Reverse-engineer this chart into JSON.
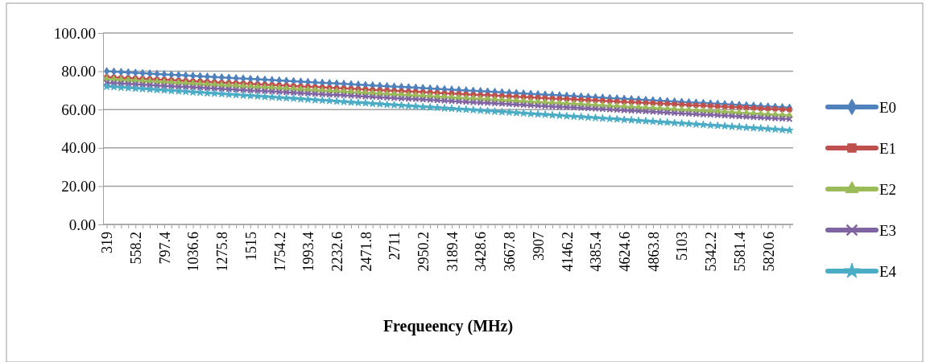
{
  "chart_data": {
    "type": "line",
    "xlabel": "Frequeency (MHz)",
    "categories": [
      "319",
      null,
      null,
      null,
      "558.2",
      null,
      null,
      null,
      "797.4",
      null,
      null,
      null,
      "1036.6",
      null,
      null,
      null,
      "1275.8",
      null,
      null,
      null,
      "1515",
      null,
      null,
      null,
      "1754.2",
      null,
      null,
      null,
      "1993.4",
      null,
      null,
      null,
      "2232.6",
      null,
      null,
      null,
      "2471.8",
      null,
      null,
      null,
      "2711",
      null,
      null,
      null,
      "2950.2",
      null,
      null,
      null,
      "3189.4",
      null,
      null,
      null,
      "3428.6",
      null,
      null,
      null,
      "3667.8",
      null,
      null,
      null,
      "3907",
      null,
      null,
      null,
      "4146.2",
      null,
      null,
      null,
      "4385.4",
      null,
      null,
      null,
      "4624.6",
      null,
      null,
      null,
      "4863.8",
      null,
      null,
      null,
      "5103",
      null,
      null,
      null,
      "5342.2",
      null,
      null,
      null,
      "5581.4",
      null,
      null,
      null,
      "5820.6",
      null,
      null,
      null
    ],
    "ylim": [
      0,
      100
    ],
    "yticks": [
      {
        "value": 0,
        "label": "0.00"
      },
      {
        "value": 20,
        "label": "20.00"
      },
      {
        "value": 40,
        "label": "40.00"
      },
      {
        "value": 60,
        "label": "60.00"
      },
      {
        "value": 80,
        "label": "80.00"
      },
      {
        "value": 100,
        "label": "100.00"
      }
    ],
    "grid": "y",
    "legend": "right",
    "line_style": "solid",
    "series": [
      {
        "name": "E0",
        "color": "#4f81bd",
        "marker": "diamond",
        "values": [
          80.0,
          79.8,
          79.6,
          79.4,
          79.2,
          79.0,
          78.8,
          78.6,
          78.4,
          78.2,
          78.0,
          77.8,
          77.6,
          77.4,
          77.2,
          77.0,
          76.8,
          76.6,
          76.4,
          76.2,
          76.0,
          75.8,
          75.6,
          75.4,
          75.2,
          75.0,
          74.8,
          74.6,
          74.4,
          74.2,
          74.0,
          73.8,
          73.6,
          73.4,
          73.2,
          73.0,
          72.8,
          72.6,
          72.4,
          72.2,
          72.0,
          71.8,
          71.6,
          71.4,
          71.2,
          71.0,
          70.8,
          70.6,
          70.4,
          70.2,
          70.0,
          69.8,
          69.6,
          69.4,
          69.2,
          69.0,
          68.8,
          68.6,
          68.4,
          68.2,
          68.0,
          67.8,
          67.6,
          67.4,
          67.2,
          67.0,
          66.8,
          66.6,
          66.4,
          66.2,
          66.0,
          65.8,
          65.6,
          65.4,
          65.2,
          65.0,
          64.8,
          64.6,
          64.4,
          64.2,
          64.0,
          63.8,
          63.6,
          63.4,
          63.2,
          63.0,
          62.8,
          62.6,
          62.4,
          62.2,
          62.0,
          61.8,
          61.6,
          61.4,
          61.2,
          61.0
        ]
      },
      {
        "name": "E1",
        "color": "#c0504d",
        "marker": "square",
        "values": [
          77.0,
          76.8,
          76.6,
          76.5,
          76.3,
          76.1,
          75.9,
          75.7,
          75.6,
          75.4,
          75.2,
          75.0,
          74.8,
          74.7,
          74.5,
          74.3,
          74.1,
          73.9,
          73.8,
          73.6,
          73.4,
          73.2,
          73.0,
          72.9,
          72.7,
          72.5,
          72.3,
          72.1,
          72.0,
          71.8,
          71.6,
          71.4,
          71.2,
          71.1,
          70.9,
          70.7,
          70.5,
          70.3,
          70.2,
          70.0,
          69.8,
          69.6,
          69.4,
          69.3,
          69.1,
          68.9,
          68.7,
          68.5,
          68.4,
          68.2,
          68.0,
          67.8,
          67.6,
          67.5,
          67.3,
          67.1,
          66.9,
          66.7,
          66.6,
          66.4,
          66.2,
          66.0,
          65.8,
          65.7,
          65.5,
          65.3,
          65.1,
          64.9,
          64.8,
          64.6,
          64.4,
          64.2,
          64.0,
          63.9,
          63.7,
          63.5,
          63.3,
          63.1,
          63.0,
          62.8,
          62.6,
          62.4,
          62.2,
          62.1,
          61.9,
          61.7,
          61.5,
          61.3,
          61.2,
          61.0,
          60.8,
          60.6,
          60.4,
          60.3,
          60.1,
          59.9
        ]
      },
      {
        "name": "E2",
        "color": "#9bbb59",
        "marker": "triangle",
        "values": [
          76.0,
          75.8,
          75.6,
          75.4,
          75.2,
          75.0,
          74.8,
          74.6,
          74.4,
          74.2,
          74.0,
          73.8,
          73.6,
          73.4,
          73.2,
          73.0,
          72.8,
          72.6,
          72.4,
          72.2,
          72.0,
          71.8,
          71.6,
          71.4,
          71.2,
          71.0,
          70.8,
          70.6,
          70.4,
          70.2,
          70.0,
          69.8,
          69.6,
          69.4,
          69.2,
          69.0,
          68.8,
          68.6,
          68.4,
          68.2,
          68.0,
          67.8,
          67.6,
          67.4,
          67.2,
          67.0,
          66.8,
          66.6,
          66.4,
          66.2,
          66.0,
          65.8,
          65.6,
          65.4,
          65.2,
          65.0,
          64.8,
          64.6,
          64.4,
          64.2,
          64.0,
          63.8,
          63.6,
          63.4,
          63.2,
          63.0,
          62.8,
          62.6,
          62.4,
          62.2,
          62.0,
          61.8,
          61.6,
          61.4,
          61.2,
          61.0,
          60.8,
          60.6,
          60.4,
          60.2,
          60.0,
          59.8,
          59.6,
          59.4,
          59.2,
          59.0,
          58.8,
          58.6,
          58.4,
          58.2,
          58.0,
          57.8,
          57.6,
          57.4,
          57.2,
          57.0
        ]
      },
      {
        "name": "E3",
        "color": "#8064a2",
        "marker": "cross",
        "values": [
          74.0,
          73.8,
          73.6,
          73.4,
          73.2,
          73.0,
          72.8,
          72.6,
          72.4,
          72.2,
          72.0,
          71.8,
          71.6,
          71.4,
          71.2,
          71.0,
          70.8,
          70.6,
          70.4,
          70.2,
          70.0,
          69.8,
          69.6,
          69.4,
          69.2,
          69.0,
          68.8,
          68.6,
          68.4,
          68.2,
          68.0,
          67.8,
          67.6,
          67.4,
          67.2,
          67.0,
          66.8,
          66.6,
          66.4,
          66.2,
          66.0,
          65.8,
          65.6,
          65.4,
          65.2,
          65.0,
          64.8,
          64.6,
          64.4,
          64.2,
          64.0,
          63.8,
          63.6,
          63.4,
          63.2,
          63.0,
          62.8,
          62.6,
          62.4,
          62.2,
          62.0,
          61.8,
          61.6,
          61.4,
          61.2,
          61.0,
          60.8,
          60.6,
          60.4,
          60.2,
          60.0,
          59.8,
          59.6,
          59.4,
          59.2,
          59.0,
          58.8,
          58.6,
          58.4,
          58.2,
          58.0,
          57.8,
          57.6,
          57.4,
          57.2,
          57.0,
          56.8,
          56.6,
          56.4,
          56.2,
          56.0,
          55.8,
          55.6,
          55.4,
          55.2,
          55.0
        ]
      },
      {
        "name": "E4",
        "color": "#4bacc6",
        "marker": "star",
        "values": [
          72.0,
          71.8,
          71.5,
          71.3,
          71.0,
          70.8,
          70.6,
          70.3,
          70.1,
          69.8,
          69.6,
          69.4,
          69.1,
          68.9,
          68.6,
          68.4,
          68.2,
          67.9,
          67.7,
          67.4,
          67.2,
          67.0,
          66.7,
          66.5,
          66.2,
          66.0,
          65.8,
          65.5,
          65.3,
          65.0,
          64.8,
          64.6,
          64.3,
          64.1,
          63.8,
          63.6,
          63.4,
          63.1,
          62.9,
          62.6,
          62.4,
          62.2,
          61.9,
          61.7,
          61.4,
          61.2,
          61.0,
          60.7,
          60.5,
          60.2,
          60.0,
          59.8,
          59.5,
          59.3,
          59.0,
          58.8,
          58.6,
          58.3,
          58.1,
          57.8,
          57.6,
          57.4,
          57.1,
          56.9,
          56.6,
          56.4,
          56.2,
          55.9,
          55.7,
          55.4,
          55.2,
          55.0,
          54.7,
          54.5,
          54.2,
          54.0,
          53.8,
          53.5,
          53.3,
          53.0,
          52.8,
          52.6,
          52.3,
          52.1,
          51.8,
          51.6,
          51.4,
          51.1,
          50.9,
          50.6,
          50.4,
          50.2,
          49.9,
          49.7,
          49.4,
          49.2
        ]
      }
    ]
  }
}
